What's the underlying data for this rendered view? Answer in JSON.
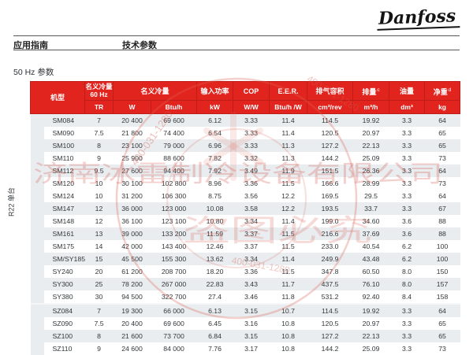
{
  "page": {
    "logo": "Danfoss",
    "breadcrumb_left": "应用指南",
    "breadcrumb_right": "技术参数",
    "section_title": "50 Hz 参数"
  },
  "watermark": {
    "company": "济南冰雷制冷设备有限公司",
    "warning": "盗图必究",
    "phone": "400-031-1280"
  },
  "colors": {
    "header_red": "#e2241e",
    "stripe_gray": "#e9edf0",
    "watermark_red": "#d96256"
  },
  "table": {
    "headers": {
      "model": "机型",
      "cap60_line1": "名义冷量",
      "cap60_line2": "60 Hz",
      "cap60_unit": "TR",
      "capacity": "名义冷量",
      "capacity_unit_w": "W",
      "capacity_unit_btu": "Btu/h",
      "power": "输入功率",
      "power_unit": "kW",
      "cop": "COP",
      "cop_unit": "W/W",
      "eer": "E.E.R.",
      "eer_unit": "Btu/h /W",
      "swept_volume": "排气容积",
      "swept_volume_unit": "cm³/rev",
      "displacement": "排量",
      "displacement_note": "c",
      "displacement_unit": "m³/h",
      "oil_charge": "油量",
      "oil_charge_unit": "dm³",
      "net_weight": "净重",
      "net_weight_note": "d",
      "net_weight_unit": "kg"
    },
    "sections": [
      {
        "label": "R22 单台",
        "shaded_rows": [
          0,
          2,
          4,
          7,
          9,
          11,
          13
        ],
        "rows": [
          [
            "SM084",
            "7",
            "20 400",
            "69 600",
            "6.12",
            "3.33",
            "11.4",
            "114.5",
            "19.92",
            "3.3",
            "64"
          ],
          [
            "SM090",
            "7.5",
            "21 800",
            "74 400",
            "6.54",
            "3.33",
            "11.4",
            "120.5",
            "20.97",
            "3.3",
            "65"
          ],
          [
            "SM100",
            "8",
            "23 100",
            "79 000",
            "6.96",
            "3.33",
            "11.3",
            "127.2",
            "22.13",
            "3.3",
            "65"
          ],
          [
            "SM110",
            "9",
            "25 900",
            "88 600",
            "7.82",
            "3.32",
            "11.3",
            "144.2",
            "25.09",
            "3.3",
            "73"
          ],
          [
            "SM112",
            "9.5",
            "27 600",
            "94 400",
            "7.92",
            "3.49",
            "11.9",
            "151.5",
            "26.36",
            "3.3",
            "64"
          ],
          [
            "SM120",
            "10",
            "30 100",
            "102 800",
            "8.96",
            "3.36",
            "11.5",
            "166.6",
            "28.99",
            "3.3",
            "73"
          ],
          [
            "SM124",
            "10",
            "31 200",
            "106 300",
            "8.75",
            "3.56",
            "12.2",
            "169.5",
            "29.5",
            "3.3",
            "64"
          ],
          [
            "SM147",
            "12",
            "36 000",
            "123 000",
            "10.08",
            "3.58",
            "12.2",
            "193.5",
            "33.7",
            "3.3",
            "67"
          ],
          [
            "SM148",
            "12",
            "36 100",
            "123 100",
            "10.80",
            "3.34",
            "11.4",
            "199.0",
            "34.60",
            "3.6",
            "88"
          ],
          [
            "SM161",
            "13",
            "39 000",
            "133 200",
            "11.59",
            "3.37",
            "11.5",
            "216.6",
            "37.69",
            "3.6",
            "88"
          ],
          [
            "SM175",
            "14",
            "42 000",
            "143 400",
            "12.46",
            "3.37",
            "11.5",
            "233.0",
            "40.54",
            "6.2",
            "100"
          ],
          [
            "SM/SY185",
            "15",
            "45 500",
            "155 300",
            "13.62",
            "3.34",
            "11.4",
            "249.9",
            "43.48",
            "6.2",
            "100"
          ],
          [
            "SY240",
            "20",
            "61 200",
            "208 700",
            "18.20",
            "3.36",
            "11.5",
            "347.8",
            "60.50",
            "8.0",
            "150"
          ],
          [
            "SY300",
            "25",
            "78 200",
            "267 000",
            "22.83",
            "3.43",
            "11.7",
            "437.5",
            "76.10",
            "8.0",
            "157"
          ],
          [
            "SY380",
            "30",
            "94 500",
            "322 700",
            "27.4",
            "3.46",
            "11.8",
            "531.2",
            "92.40",
            "8.4",
            "158"
          ]
        ]
      },
      {
        "label": "",
        "shaded_rows": [
          0,
          2
        ],
        "rows": [
          [
            "SZ084",
            "7",
            "19 300",
            "66 000",
            "6.13",
            "3.15",
            "10.7",
            "114.5",
            "19.92",
            "3.3",
            "64"
          ],
          [
            "SZ090",
            "7.5",
            "20 400",
            "69 600",
            "6.45",
            "3.16",
            "10.8",
            "120.5",
            "20.97",
            "3.3",
            "65"
          ],
          [
            "SZ100",
            "8",
            "21 600",
            "73 700",
            "6.84",
            "3.15",
            "10.8",
            "127.2",
            "22.13",
            "3.3",
            "65"
          ],
          [
            "SZ110",
            "9",
            "24 600",
            "84 000",
            "7.76",
            "3.17",
            "10.8",
            "144.2",
            "25.09",
            "3.3",
            "73"
          ]
        ]
      }
    ]
  }
}
